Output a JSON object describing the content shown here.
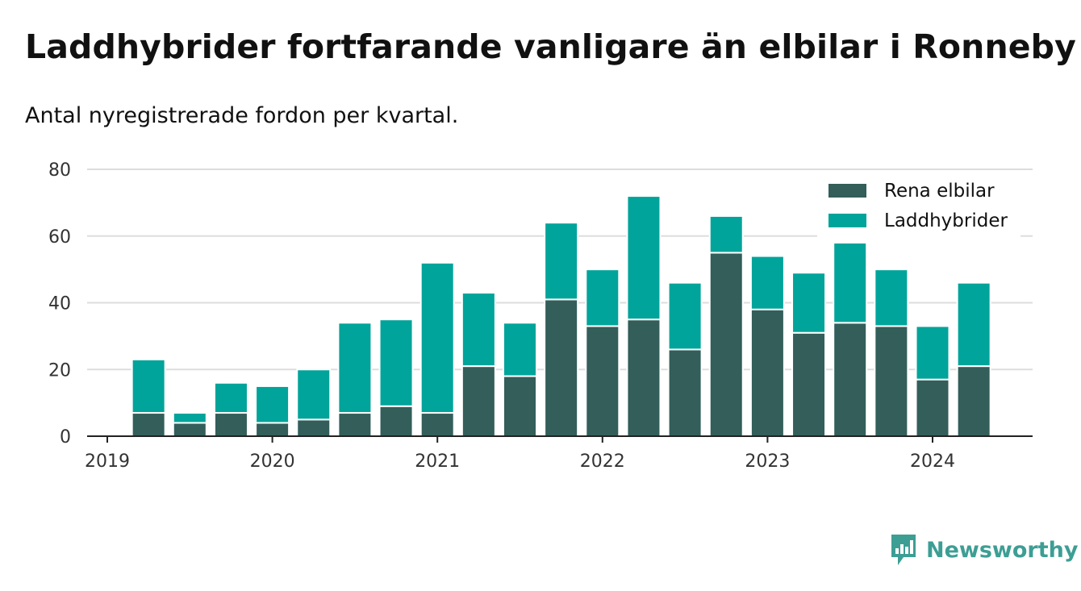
{
  "title": "Laddhybrider fortfarande vanligare än elbilar i Ronneby",
  "subtitle": "Antal nyregistrerade fordon per kvartal.",
  "brand": {
    "name": "Newsworthy",
    "icon": "newsworthy-logo-icon",
    "color": "#3d9e94"
  },
  "colors": {
    "rena_elbilar": "#335e5a",
    "laddhybrider": "#00a49a",
    "grid": "#dddddd",
    "axis": "#222222"
  },
  "chart_data": {
    "type": "bar",
    "stacked": true,
    "title": "Laddhybrider fortfarande vanligare än elbilar i Ronneby",
    "subtitle": "Antal nyregistrerade fordon per kvartal.",
    "xlabel": "",
    "ylabel": "",
    "ylim": [
      0,
      80
    ],
    "yticks": [
      0,
      20,
      40,
      60,
      80
    ],
    "xticks": [
      "2019",
      "2020",
      "2021",
      "2022",
      "2023",
      "2024"
    ],
    "legend_position": "top-right",
    "grid": true,
    "categories": [
      "2019 Q2",
      "2019 Q3",
      "2019 Q4",
      "2020 Q1",
      "2020 Q2",
      "2020 Q3",
      "2020 Q4",
      "2021 Q1",
      "2021 Q2",
      "2021 Q3",
      "2021 Q4",
      "2022 Q1",
      "2022 Q2",
      "2022 Q3",
      "2022 Q4",
      "2023 Q1",
      "2023 Q2",
      "2023 Q3",
      "2023 Q4",
      "2024 Q1",
      "2024 Q2"
    ],
    "series": [
      {
        "name": "Rena elbilar",
        "values": [
          7,
          4,
          7,
          4,
          5,
          7,
          9,
          7,
          21,
          18,
          41,
          33,
          35,
          26,
          55,
          38,
          31,
          34,
          33,
          17,
          21
        ]
      },
      {
        "name": "Laddhybrider",
        "values": [
          16,
          3,
          9,
          11,
          15,
          27,
          26,
          45,
          22,
          16,
          23,
          17,
          37,
          20,
          11,
          16,
          18,
          24,
          17,
          16,
          25
        ]
      }
    ]
  }
}
